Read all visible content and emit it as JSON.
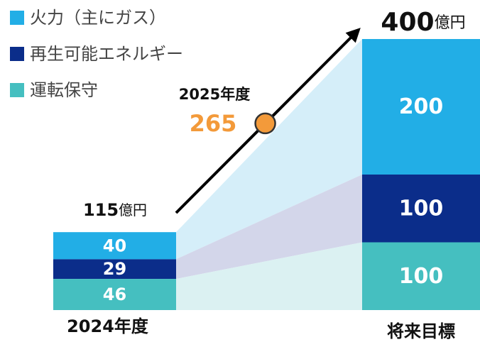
{
  "chart_data": {
    "type": "bar",
    "stacked": true,
    "categories": [
      "2024年度",
      "将来目標"
    ],
    "series": [
      {
        "name": "火力（主にガス）",
        "color": "#22aee6",
        "values": [
          40,
          200
        ]
      },
      {
        "name": "再生可能エネルギー",
        "color": "#0b2d8a",
        "values": [
          29,
          100
        ]
      },
      {
        "name": "運転保守",
        "color": "#45bfc0",
        "values": [
          46,
          100
        ]
      }
    ],
    "totals": [
      115,
      400
    ],
    "total_unit": "億円",
    "annotation": {
      "label": "2025年度",
      "value": 265,
      "color": "#f39a3a"
    }
  }
}
